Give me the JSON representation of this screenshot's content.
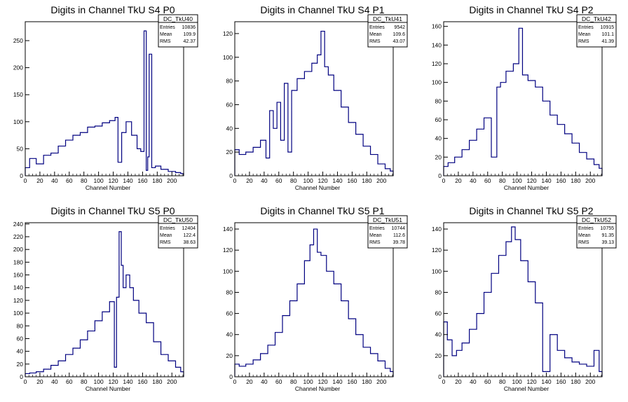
{
  "chart_data": [
    {
      "type": "histogram",
      "title": "Digits in Channel TkU S4 P0",
      "xlabel": "Channel Number",
      "xlim": [
        0,
        216
      ],
      "ylim": [
        0,
        285
      ],
      "xticks": [
        0,
        20,
        40,
        60,
        80,
        100,
        120,
        140,
        160,
        180,
        200
      ],
      "yticks": [
        0,
        50,
        100,
        150,
        200,
        250
      ],
      "color": "#000080",
      "stats": {
        "name": "DC_TkU40",
        "entries": "10836",
        "mean": "109.9",
        "rms": "42.37"
      },
      "x": [
        2,
        10,
        20,
        30,
        40,
        50,
        60,
        70,
        80,
        90,
        100,
        110,
        120,
        125,
        128,
        135,
        140,
        150,
        155,
        160,
        164,
        166,
        168,
        170,
        175,
        180,
        190,
        200,
        210,
        214
      ],
      "values": [
        15,
        32,
        22,
        38,
        42,
        55,
        66,
        75,
        80,
        90,
        92,
        98,
        102,
        108,
        25,
        80,
        100,
        75,
        50,
        45,
        268,
        10,
        35,
        225,
        15,
        18,
        12,
        8,
        6,
        4
      ]
    },
    {
      "type": "histogram",
      "title": "Digits in Channel TkU S4 P1",
      "xlabel": "Channel Number",
      "xlim": [
        0,
        216
      ],
      "ylim": [
        0,
        130
      ],
      "xticks": [
        0,
        20,
        40,
        60,
        80,
        100,
        120,
        140,
        160,
        180,
        200
      ],
      "yticks": [
        0,
        20,
        40,
        60,
        80,
        100,
        120
      ],
      "color": "#000080",
      "stats": {
        "name": "DC_TkU41",
        "entries": "9542",
        "mean": "109.6",
        "rms": "43.07"
      },
      "x": [
        2,
        10,
        20,
        30,
        40,
        45,
        50,
        55,
        60,
        65,
        70,
        75,
        80,
        90,
        100,
        110,
        115,
        120,
        125,
        130,
        140,
        150,
        160,
        170,
        180,
        190,
        200,
        210,
        214
      ],
      "values": [
        22,
        18,
        20,
        24,
        30,
        15,
        55,
        40,
        62,
        30,
        78,
        20,
        72,
        82,
        88,
        95,
        102,
        122,
        92,
        85,
        72,
        58,
        45,
        35,
        25,
        18,
        10,
        6,
        4
      ]
    },
    {
      "type": "histogram",
      "title": "Digits in Channel TkU S4 P2",
      "xlabel": "Channel Number",
      "xlim": [
        0,
        216
      ],
      "ylim": [
        0,
        165
      ],
      "xticks": [
        0,
        20,
        40,
        60,
        80,
        100,
        120,
        140,
        160,
        180,
        200
      ],
      "yticks": [
        0,
        20,
        40,
        60,
        80,
        100,
        120,
        140,
        160
      ],
      "color": "#000080",
      "stats": {
        "name": "DC_TkU42",
        "entries": "10915",
        "mean": "101.1",
        "rms": "41.39"
      },
      "x": [
        2,
        10,
        20,
        30,
        40,
        50,
        60,
        70,
        75,
        80,
        90,
        100,
        105,
        110,
        120,
        130,
        140,
        150,
        160,
        170,
        180,
        190,
        200,
        210,
        214
      ],
      "values": [
        10,
        14,
        20,
        28,
        38,
        50,
        62,
        20,
        95,
        100,
        112,
        120,
        158,
        108,
        102,
        95,
        80,
        65,
        55,
        45,
        35,
        25,
        18,
        12,
        8
      ]
    },
    {
      "type": "histogram",
      "title": "Digits in Channel TkU S5 P0",
      "xlabel": "Channel Number",
      "xlim": [
        0,
        216
      ],
      "ylim": [
        0,
        242
      ],
      "xticks": [
        0,
        20,
        40,
        60,
        80,
        100,
        120,
        140,
        160,
        180,
        200
      ],
      "yticks": [
        0,
        20,
        40,
        60,
        80,
        100,
        120,
        140,
        160,
        180,
        200,
        220,
        240
      ],
      "color": "#000080",
      "stats": {
        "name": "DC_TkU50",
        "entries": "12404",
        "mean": "122.4",
        "rms": "38.63"
      },
      "x": [
        2,
        10,
        20,
        30,
        40,
        50,
        60,
        70,
        80,
        90,
        100,
        110,
        120,
        123,
        126,
        130,
        132,
        135,
        140,
        145,
        150,
        160,
        170,
        180,
        190,
        200,
        210,
        214
      ],
      "values": [
        5,
        6,
        8,
        12,
        18,
        25,
        35,
        45,
        58,
        72,
        88,
        102,
        118,
        15,
        125,
        228,
        175,
        140,
        160,
        140,
        120,
        100,
        85,
        55,
        35,
        25,
        15,
        8
      ]
    },
    {
      "type": "histogram",
      "title": "Digits in Channel TkU S5 P1",
      "xlabel": "Channel Number",
      "xlim": [
        0,
        216
      ],
      "ylim": [
        0,
        146
      ],
      "xticks": [
        0,
        20,
        40,
        60,
        80,
        100,
        120,
        140,
        160,
        180,
        200
      ],
      "yticks": [
        0,
        20,
        40,
        60,
        80,
        100,
        120,
        140
      ],
      "color": "#000080",
      "stats": {
        "name": "DC_TkU51",
        "entries": "10744",
        "mean": "112.6",
        "rms": "39.78"
      },
      "x": [
        2,
        10,
        20,
        30,
        40,
        50,
        60,
        70,
        80,
        90,
        100,
        105,
        110,
        115,
        120,
        130,
        140,
        150,
        160,
        170,
        180,
        190,
        200,
        210,
        214
      ],
      "values": [
        12,
        10,
        12,
        16,
        22,
        30,
        42,
        58,
        72,
        88,
        110,
        125,
        140,
        118,
        115,
        100,
        88,
        72,
        55,
        40,
        28,
        22,
        15,
        8,
        5
      ]
    },
    {
      "type": "histogram",
      "title": "Digits in Channel TkU S5 P2",
      "xlabel": "Channel Number",
      "xlim": [
        0,
        216
      ],
      "ylim": [
        0,
        146
      ],
      "xticks": [
        0,
        20,
        40,
        60,
        80,
        100,
        120,
        140,
        160,
        180,
        200
      ],
      "yticks": [
        0,
        20,
        40,
        60,
        80,
        100,
        120,
        140
      ],
      "color": "#000080",
      "stats": {
        "name": "DC_TkU52",
        "entries": "10755",
        "mean": "91.35",
        "rms": "39.13"
      },
      "x": [
        2,
        8,
        15,
        20,
        30,
        40,
        50,
        60,
        70,
        80,
        90,
        95,
        100,
        110,
        120,
        130,
        140,
        150,
        160,
        170,
        180,
        190,
        200,
        210,
        214
      ],
      "values": [
        52,
        35,
        20,
        25,
        32,
        45,
        60,
        80,
        98,
        115,
        128,
        142,
        130,
        110,
        90,
        70,
        5,
        40,
        25,
        18,
        14,
        12,
        10,
        25,
        5
      ]
    }
  ]
}
